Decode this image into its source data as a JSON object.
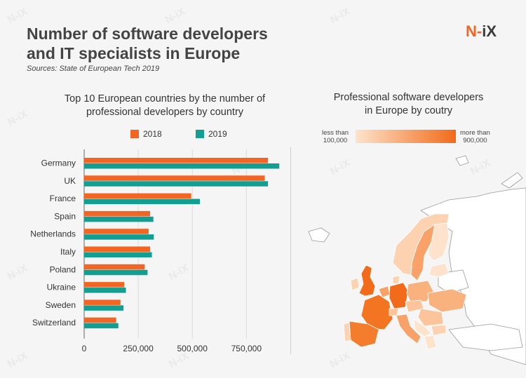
{
  "header": {
    "title_line1": "Number of software developers",
    "title_line2": "and IT specialists in Europe",
    "sources": "Sources: State of European Tech 2019",
    "logo_n": "N",
    "logo_dash": "-",
    "logo_ix": "iX"
  },
  "watermark": "N-iX",
  "colors": {
    "series_2018": "#f26522",
    "series_2019": "#139e92",
    "map_low": "#fde3cc",
    "map_high": "#f26b1a"
  },
  "chart_data": [
    {
      "type": "bar",
      "orientation": "horizontal",
      "title_line1": "Top 10 European countries by the number of",
      "title_line2": "professional developers by country",
      "categories": [
        "Germany",
        "UK",
        "France",
        "Spain",
        "Netherlands",
        "Italy",
        "Poland",
        "Ukraine",
        "Sweden",
        "Switzerland"
      ],
      "series": [
        {
          "name": "2018",
          "values": [
            850000,
            835000,
            495000,
            305000,
            298000,
            305000,
            280000,
            185000,
            168000,
            148000
          ]
        },
        {
          "name": "2019",
          "values": [
            902000,
            850000,
            535000,
            320000,
            322000,
            313000,
            293000,
            193000,
            182000,
            158000
          ]
        }
      ],
      "xticks": [
        "0",
        "250,000",
        "500,000",
        "750,000"
      ],
      "xtick_values": [
        0,
        250000,
        500000,
        750000
      ],
      "xlim": [
        0,
        950000
      ],
      "legend_position": "top",
      "grid": "vertical"
    },
    {
      "type": "choropleth",
      "title_line1": "Professional software developers",
      "title_line2": "in Europe by coutry",
      "scale_low_line1": "less than",
      "scale_low_line2": "100,000",
      "scale_high_line1": "more than",
      "scale_high_line2": "900,000"
    }
  ]
}
